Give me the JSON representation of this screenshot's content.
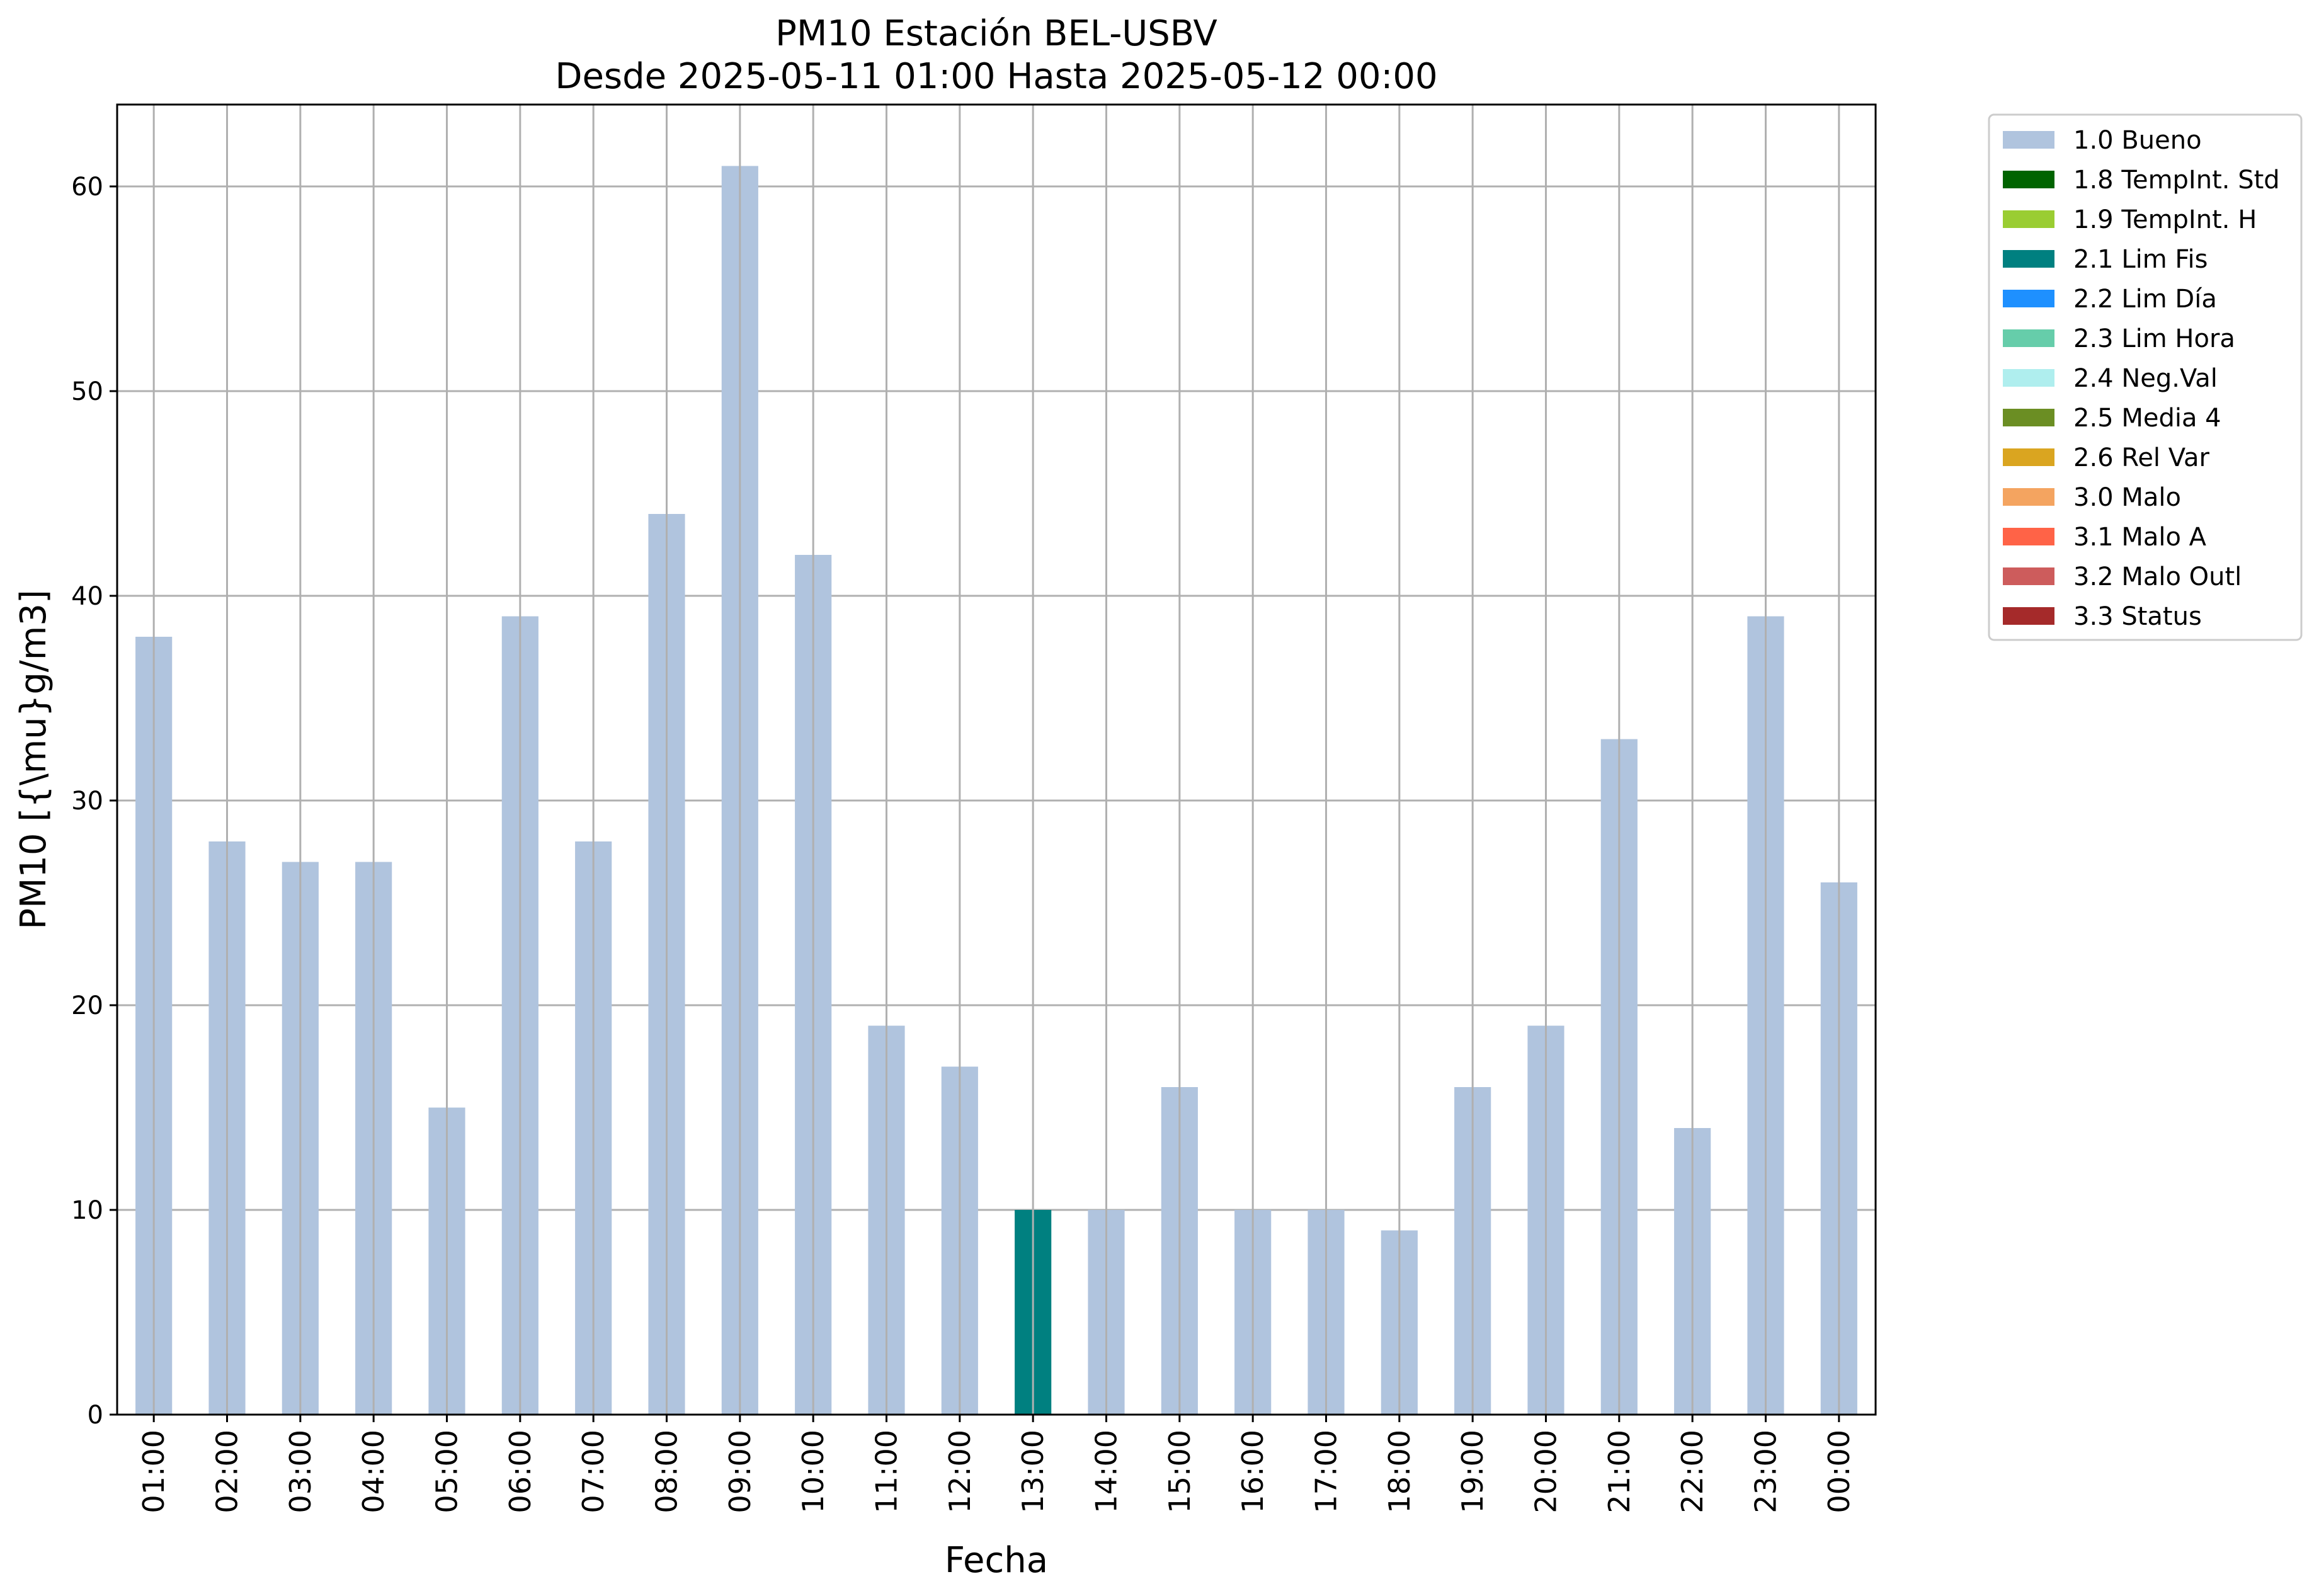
{
  "chart_data": {
    "type": "bar",
    "title": [
      "PM10 Estación BEL-USBV",
      "Desde 2025-05-11 01:00 Hasta 2025-05-12 00:00"
    ],
    "xlabel": "Fecha",
    "ylabel": "PM10 [{\\mu}g/m3]",
    "ylim": [
      0,
      64
    ],
    "yticks": [
      0,
      10,
      20,
      30,
      40,
      50,
      60
    ],
    "grid": true,
    "legend_position": "outside-top-right",
    "categories": [
      "01:00",
      "02:00",
      "03:00",
      "04:00",
      "05:00",
      "06:00",
      "07:00",
      "08:00",
      "09:00",
      "10:00",
      "11:00",
      "12:00",
      "13:00",
      "14:00",
      "15:00",
      "16:00",
      "17:00",
      "18:00",
      "19:00",
      "20:00",
      "21:00",
      "22:00",
      "23:00",
      "00:00"
    ],
    "values": [
      38,
      28,
      27,
      27,
      15,
      39,
      28,
      44,
      61,
      42,
      19,
      17,
      10,
      10,
      16,
      10,
      10,
      9,
      16,
      19,
      33,
      14,
      39,
      26
    ],
    "flags": [
      "1.0 Bueno",
      "1.0 Bueno",
      "1.0 Bueno",
      "1.0 Bueno",
      "1.0 Bueno",
      "1.0 Bueno",
      "1.0 Bueno",
      "1.0 Bueno",
      "1.0 Bueno",
      "1.0 Bueno",
      "1.0 Bueno",
      "1.0 Bueno",
      "2.1 Lim Fis",
      "1.0 Bueno",
      "1.0 Bueno",
      "1.0 Bueno",
      "1.0 Bueno",
      "1.0 Bueno",
      "1.0 Bueno",
      "1.0 Bueno",
      "1.0 Bueno",
      "1.0 Bueno",
      "1.0 Bueno",
      "1.0 Bueno"
    ],
    "legend": [
      {
        "name": "1.0 Bueno",
        "color": "#b0c4de"
      },
      {
        "name": "1.8 TempInt. Std",
        "color": "#006400"
      },
      {
        "name": "1.9 TempInt. H",
        "color": "#9acd32"
      },
      {
        "name": "2.1 Lim Fis",
        "color": "#008080"
      },
      {
        "name": "2.2 Lim Día",
        "color": "#1e90ff"
      },
      {
        "name": "2.3 Lim Hora",
        "color": "#66cdaa"
      },
      {
        "name": "2.4 Neg.Val",
        "color": "#afeeee"
      },
      {
        "name": "2.5 Media 4",
        "color": "#6b8e23"
      },
      {
        "name": "2.6 Rel Var",
        "color": "#daa520"
      },
      {
        "name": "3.0 Malo",
        "color": "#f4a460"
      },
      {
        "name": "3.1 Malo A",
        "color": "#ff6347"
      },
      {
        "name": "3.2 Malo Outl",
        "color": "#cd5c5c"
      },
      {
        "name": "3.3 Status",
        "color": "#a52a2a"
      }
    ]
  }
}
